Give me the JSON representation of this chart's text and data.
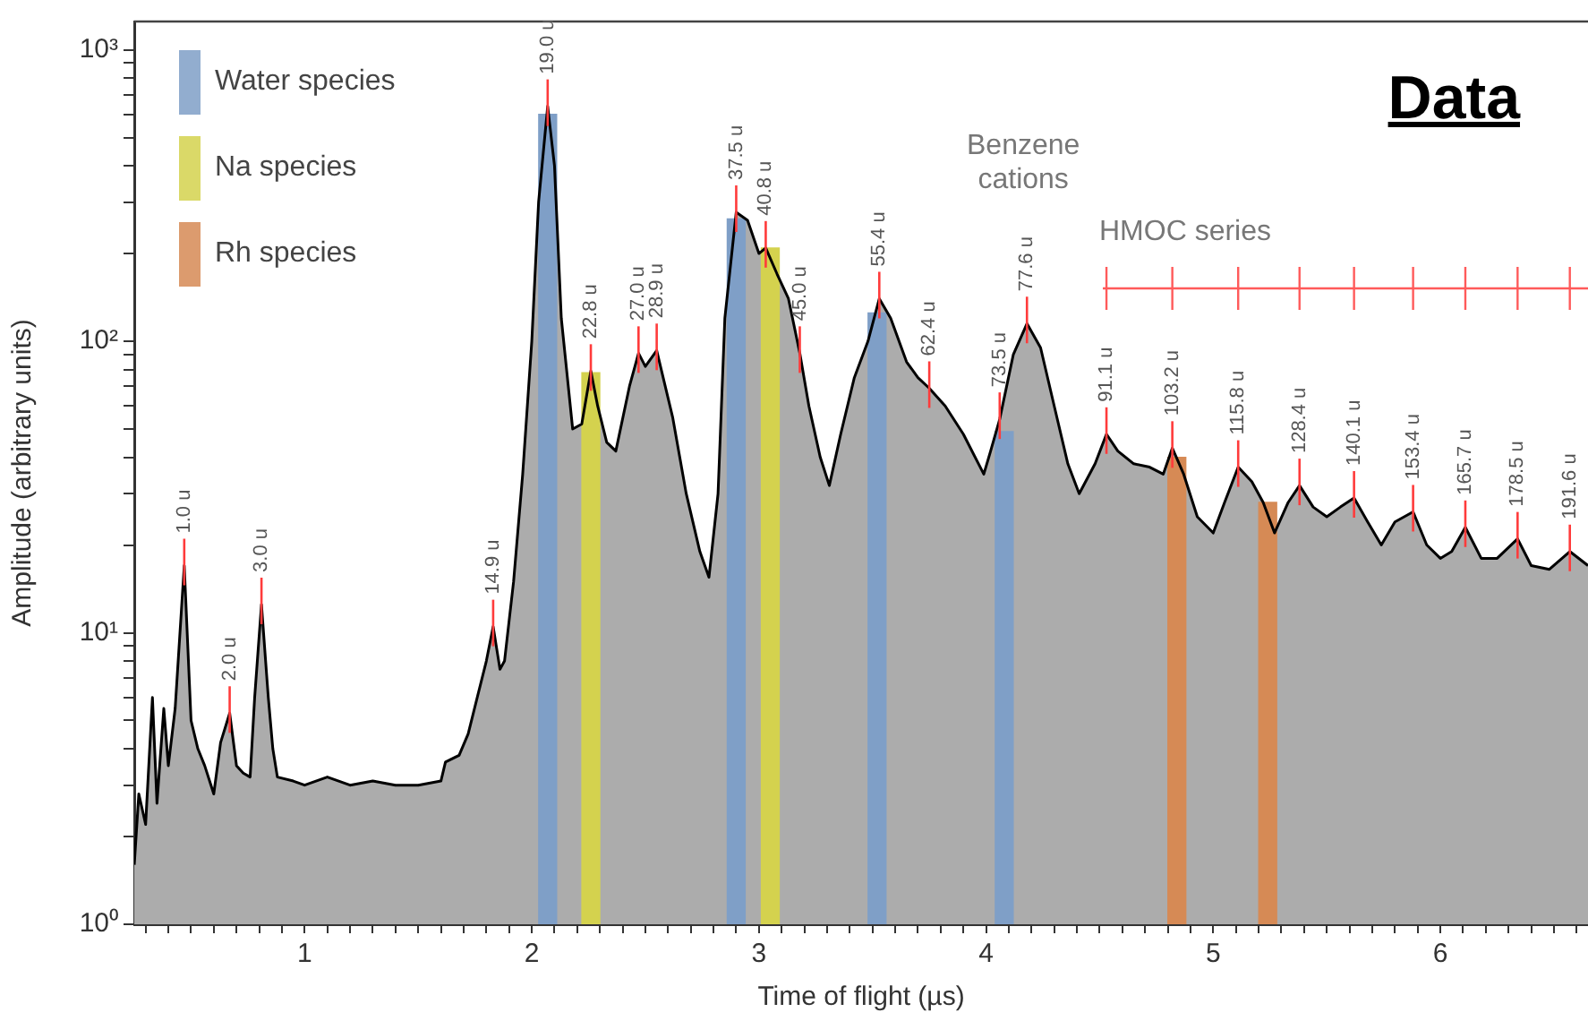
{
  "chart_data": {
    "type": "area",
    "title": "Data",
    "xlabel": "Time of flight (µs)",
    "ylabel": "Amplitude (arbitrary units)",
    "log": "y",
    "grid": false,
    "legend": "top left",
    "xlim": [
      0.25,
      6.65
    ],
    "ylim": [
      1,
      1250
    ],
    "xticks": [
      {
        "value": 0.3,
        "label": null
      },
      {
        "value": 0.4,
        "label": null
      },
      {
        "value": 0.5,
        "label": null
      },
      {
        "value": 0.6,
        "label": null
      },
      {
        "value": 0.7,
        "label": null
      },
      {
        "value": 0.8,
        "label": null
      },
      {
        "value": 0.9,
        "label": null
      },
      1,
      {
        "value": 1.1,
        "label": null
      },
      {
        "value": 1.2,
        "label": null
      },
      {
        "value": 1.3,
        "label": null
      },
      {
        "value": 1.4,
        "label": null
      },
      {
        "value": 1.5,
        "label": null
      },
      {
        "value": 1.6,
        "label": null
      },
      {
        "value": 1.7,
        "label": null
      },
      {
        "value": 1.8,
        "label": null
      },
      {
        "value": 1.9,
        "label": null
      },
      2,
      {
        "value": 2.1,
        "label": null
      },
      {
        "value": 2.2,
        "label": null
      },
      {
        "value": 2.3,
        "label": null
      },
      {
        "value": 2.4,
        "label": null
      },
      {
        "value": 2.5,
        "label": null
      },
      {
        "value": 2.6,
        "label": null
      },
      {
        "value": 2.7,
        "label": null
      },
      {
        "value": 2.8,
        "label": null
      },
      {
        "value": 2.9,
        "label": null
      },
      3,
      {
        "value": 3.1,
        "label": null
      },
      {
        "value": 3.2,
        "label": null
      },
      {
        "value": 3.3,
        "label": null
      },
      {
        "value": 3.4,
        "label": null
      },
      {
        "value": 3.5,
        "label": null
      },
      {
        "value": 3.6,
        "label": null
      },
      {
        "value": 3.7,
        "label": null
      },
      {
        "value": 3.8,
        "label": null
      },
      {
        "value": 3.9,
        "label": null
      },
      4,
      {
        "value": 4.1,
        "label": null
      },
      {
        "value": 4.2,
        "label": null
      },
      {
        "value": 4.3,
        "label": null
      },
      {
        "value": 4.4,
        "label": null
      },
      {
        "value": 4.5,
        "label": null
      },
      {
        "value": 4.6,
        "label": null
      },
      {
        "value": 4.7,
        "label": null
      },
      {
        "value": 4.8,
        "label": null
      },
      {
        "value": 4.9,
        "label": null
      },
      5,
      {
        "value": 5.1,
        "label": null
      },
      {
        "value": 5.2,
        "label": null
      },
      {
        "value": 5.3,
        "label": null
      },
      {
        "value": 5.4,
        "label": null
      },
      {
        "value": 5.5,
        "label": null
      },
      {
        "value": 5.6,
        "label": null
      },
      {
        "value": 5.7,
        "label": null
      },
      {
        "value": 5.8,
        "label": null
      },
      {
        "value": 5.9,
        "label": null
      },
      6,
      {
        "value": 6.1,
        "label": null
      },
      {
        "value": 6.2,
        "label": null
      },
      {
        "value": 6.3,
        "label": null
      },
      {
        "value": 6.4,
        "label": null
      },
      {
        "value": 6.5,
        "label": null
      },
      {
        "value": 6.6,
        "label": null
      }
    ],
    "yticks": [
      {
        "value": 1,
        "label": "10⁰"
      },
      {
        "value": 2,
        "label": null
      },
      {
        "value": 3,
        "label": null
      },
      {
        "value": 4,
        "label": null
      },
      {
        "value": 5,
        "label": null
      },
      {
        "value": 6,
        "label": null
      },
      {
        "value": 7,
        "label": null
      },
      {
        "value": 8,
        "label": null
      },
      {
        "value": 9,
        "label": null
      },
      {
        "value": 10,
        "label": "10¹"
      },
      {
        "value": 20,
        "label": null
      },
      {
        "value": 30,
        "label": null
      },
      {
        "value": 40,
        "label": null
      },
      {
        "value": 50,
        "label": null
      },
      {
        "value": 60,
        "label": null
      },
      {
        "value": 70,
        "label": null
      },
      {
        "value": 80,
        "label": null
      },
      {
        "value": 90,
        "label": null
      },
      {
        "value": 100,
        "label": "10²"
      },
      {
        "value": 200,
        "label": null
      },
      {
        "value": 300,
        "label": null
      },
      {
        "value": 400,
        "label": null
      },
      {
        "value": 500,
        "label": null
      },
      {
        "value": 600,
        "label": null
      },
      {
        "value": 700,
        "label": null
      },
      {
        "value": 800,
        "label": null
      },
      {
        "value": 900,
        "label": null
      },
      {
        "value": 1000,
        "label": "10³"
      }
    ],
    "series": [
      {
        "color": "#acacac",
        "x": [
          0.25,
          0.27,
          0.3,
          0.33,
          0.35,
          0.38,
          0.4,
          0.43,
          0.47,
          0.5,
          0.53,
          0.56,
          0.6,
          0.63,
          0.67,
          0.7,
          0.73,
          0.76,
          0.78,
          0.81,
          0.84,
          0.86,
          0.88,
          0.95,
          1.0,
          1.1,
          1.2,
          1.3,
          1.4,
          1.5,
          1.6,
          1.62,
          1.68,
          1.72,
          1.76,
          1.8,
          1.83,
          1.86,
          1.88,
          1.92,
          1.96,
          2.0,
          2.03,
          2.07,
          2.1,
          2.13,
          2.18,
          2.22,
          2.26,
          2.29,
          2.33,
          2.37,
          2.43,
          2.47,
          2.5,
          2.55,
          2.62,
          2.68,
          2.74,
          2.78,
          2.82,
          2.85,
          2.9,
          2.95,
          3.0,
          3.03,
          3.08,
          3.13,
          3.18,
          3.22,
          3.27,
          3.31,
          3.36,
          3.42,
          3.48,
          3.53,
          3.58,
          3.65,
          3.7,
          3.75,
          3.82,
          3.9,
          3.99,
          4.02,
          4.06,
          4.12,
          4.18,
          4.24,
          4.3,
          4.36,
          4.41,
          4.48,
          4.53,
          4.58,
          4.65,
          4.72,
          4.78,
          4.82,
          4.87,
          4.93,
          5.0,
          5.05,
          5.11,
          5.17,
          5.22,
          5.27,
          5.33,
          5.38,
          5.44,
          5.5,
          5.56,
          5.62,
          5.68,
          5.74,
          5.8,
          5.88,
          5.94,
          6.0,
          6.05,
          6.11,
          6.18,
          6.25,
          6.34,
          6.4,
          6.48,
          6.57,
          6.65
        ],
        "values": [
          1.6,
          2.8,
          2.2,
          6,
          2.6,
          5.5,
          3.5,
          5.5,
          17,
          5,
          4,
          3.5,
          2.8,
          4.2,
          5.3,
          3.5,
          3.3,
          3.2,
          6,
          12.5,
          6,
          4,
          3.2,
          3.1,
          3.0,
          3.2,
          3.0,
          3.1,
          3.0,
          3.0,
          3.1,
          3.6,
          3.8,
          4.5,
          6,
          8,
          10.5,
          7.5,
          8,
          15,
          35,
          100,
          300,
          640,
          400,
          120,
          50,
          52,
          79,
          60,
          45,
          42,
          70,
          91,
          82,
          93,
          55,
          30,
          19,
          15.5,
          30,
          120,
          277,
          260,
          200,
          209,
          170,
          140,
          91,
          60,
          40,
          32,
          48,
          75,
          100,
          140,
          120,
          85,
          75,
          69,
          60,
          48,
          35,
          42,
          54,
          90,
          115,
          95,
          60,
          38,
          30,
          38,
          48,
          42,
          38,
          37,
          35,
          43,
          35,
          25,
          22,
          28,
          37,
          33,
          28,
          22,
          28,
          32,
          27,
          25,
          27,
          29,
          24,
          20,
          24,
          26,
          20,
          18,
          19,
          23,
          18,
          18,
          21,
          17,
          16.5,
          19,
          17
        ]
      },
      {
        "type": "bar",
        "name": "Water species",
        "color": "#7f9fc7",
        "x": [
          2.07,
          2.9,
          3.52,
          4.08
        ],
        "values": [
          600,
          263,
          125,
          49
        ]
      },
      {
        "type": "bar",
        "name": "Na species",
        "color": "#d4d24e",
        "x": [
          2.26,
          3.05
        ],
        "values": [
          78,
          209
        ]
      },
      {
        "type": "bar",
        "name": "Rh species",
        "color": "#d68a55",
        "x": [
          4.84,
          5.24
        ],
        "values": [
          40,
          28
        ]
      }
    ],
    "annotations": [
      {
        "text": "1.0 u",
        "x": 0.47,
        "y": 17
      },
      {
        "text": "2.0 u",
        "x": 0.67,
        "y": 5.3
      },
      {
        "text": "3.0 u",
        "x": 0.81,
        "y": 12.5
      },
      {
        "text": "14.9 u",
        "x": 1.83,
        "y": 10.5
      },
      {
        "text": "19.0 u",
        "x": 2.07,
        "y": 640
      },
      {
        "text": "22.8 u",
        "x": 2.26,
        "y": 79
      },
      {
        "text": "27.0 u",
        "x": 2.47,
        "y": 91
      },
      {
        "text": "28.9 u",
        "x": 2.55,
        "y": 93
      },
      {
        "text": "37.5 u",
        "x": 2.9,
        "y": 277
      },
      {
        "text": "40.8 u",
        "x": 3.03,
        "y": 209
      },
      {
        "text": "45.0 u",
        "x": 3.18,
        "y": 91
      },
      {
        "text": "55.4 u",
        "x": 3.53,
        "y": 140
      },
      {
        "text": "62.4 u",
        "x": 3.75,
        "y": 69
      },
      {
        "text": "73.5 u",
        "x": 4.06,
        "y": 54
      },
      {
        "text": "77.6 u",
        "x": 4.18,
        "y": 115
      },
      {
        "text": "91.1 u",
        "x": 4.53,
        "y": 48
      },
      {
        "text": "103.2 u",
        "x": 4.82,
        "y": 43
      },
      {
        "text": "115.8 u",
        "x": 5.11,
        "y": 37
      },
      {
        "text": "128.4 u",
        "x": 5.38,
        "y": 32
      },
      {
        "text": "140.1 u",
        "x": 5.62,
        "y": 29
      },
      {
        "text": "153.4 u",
        "x": 5.88,
        "y": 26
      },
      {
        "text": "165.7 u",
        "x": 6.11,
        "y": 23
      },
      {
        "text": "178.5 u",
        "x": 6.34,
        "y": 21
      },
      {
        "text": "191.6 u",
        "x": 6.57,
        "y": 19
      },
      "Benzene\ncations",
      "HMOC series"
    ]
  }
}
